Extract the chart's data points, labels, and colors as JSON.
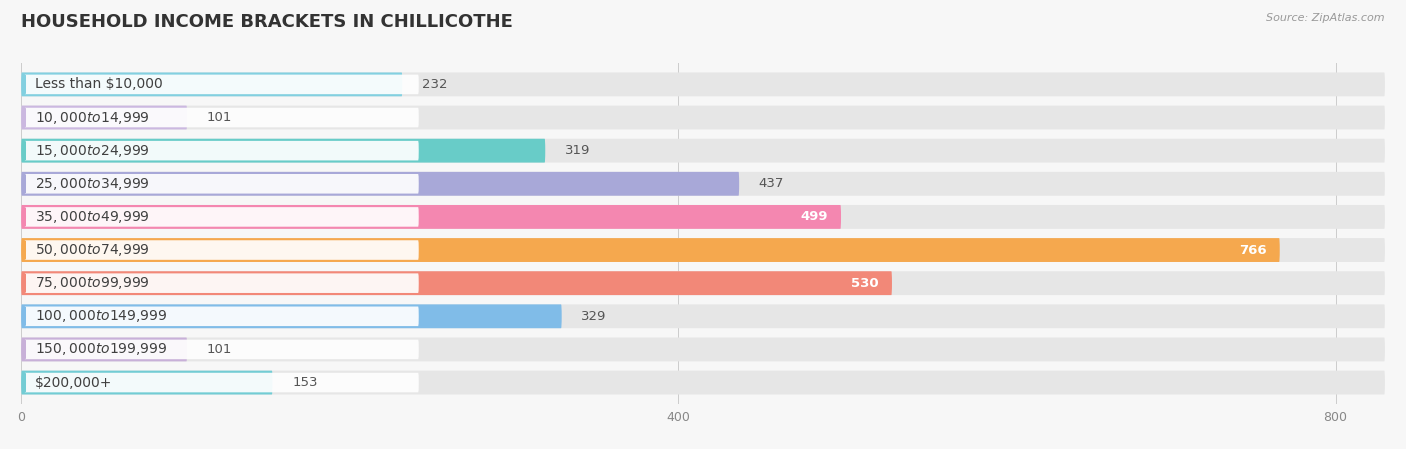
{
  "title": "HOUSEHOLD INCOME BRACKETS IN CHILLICOTHE",
  "source": "Source: ZipAtlas.com",
  "categories": [
    "Less than $10,000",
    "$10,000 to $14,999",
    "$15,000 to $24,999",
    "$25,000 to $34,999",
    "$35,000 to $49,999",
    "$50,000 to $74,999",
    "$75,000 to $99,999",
    "$100,000 to $149,999",
    "$150,000 to $199,999",
    "$200,000+"
  ],
  "values": [
    232,
    101,
    319,
    437,
    499,
    766,
    530,
    329,
    101,
    153
  ],
  "bar_colors": [
    "#82d0e0",
    "#cbb8e0",
    "#68ccc8",
    "#a8a8d8",
    "#f487b0",
    "#f5a84e",
    "#f28878",
    "#80bce8",
    "#c8b0d8",
    "#72ccd4"
  ],
  "xlim_max": 830,
  "xticks": [
    0,
    400,
    800
  ],
  "bg_color": "#f7f7f7",
  "row_bg_color": "#e6e6e6",
  "pill_bg_color": "#ffffff",
  "title_fontsize": 13,
  "label_fontsize": 10,
  "value_fontsize": 9.5,
  "value_inside_threshold": 450
}
